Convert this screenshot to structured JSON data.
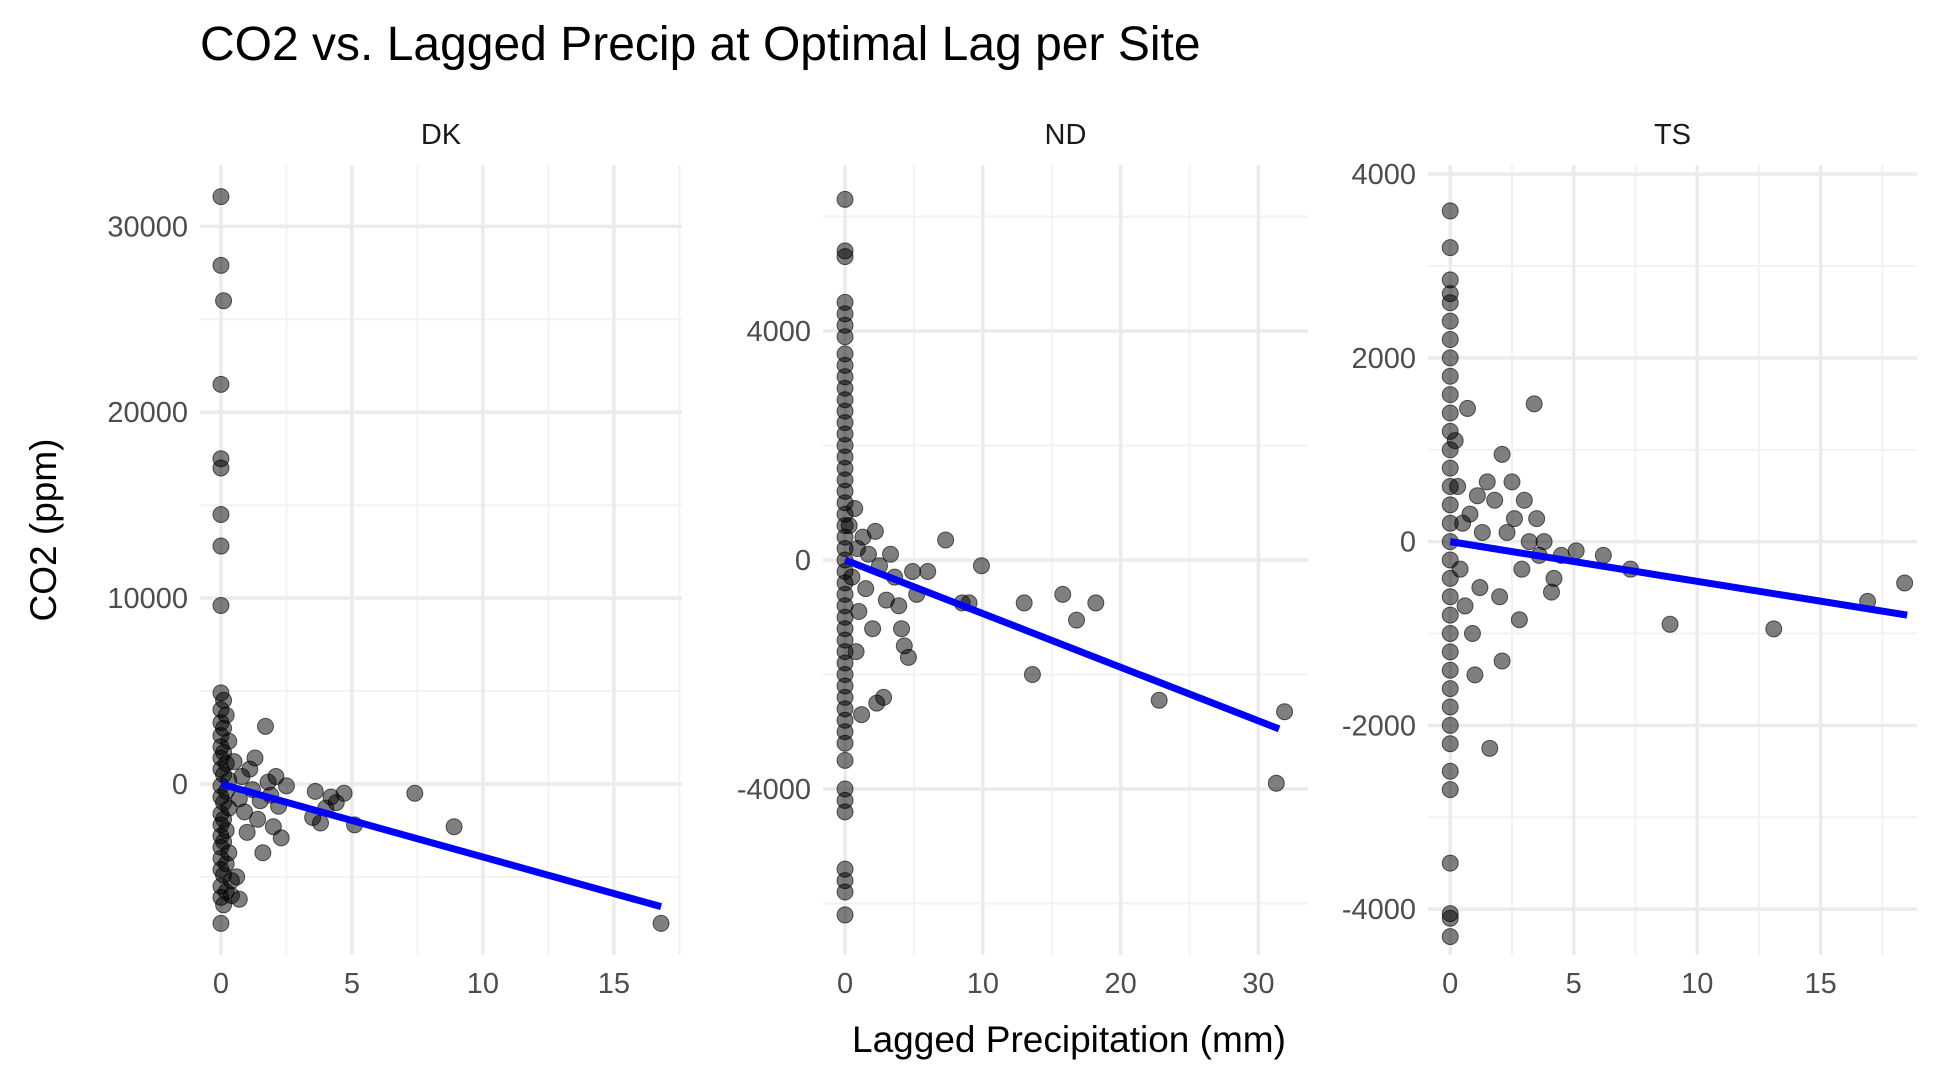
{
  "chart_data": {
    "type": "scatter",
    "title": "CO2 vs. Lagged Precip at Optimal Lag per Site",
    "xlabel": "Lagged Precipitation (mm)",
    "ylabel": "CO2 (ppm)",
    "grid": true,
    "legend": "none",
    "colors": {
      "points": "#000000",
      "fit_line": "#0000ff",
      "grid": "#ebebeb"
    },
    "panels": [
      {
        "name": "DK",
        "xlim": [
          -0.8,
          17.6
        ],
        "ylim": [
          -9200,
          33300
        ],
        "x_major_ticks": [
          0,
          5,
          10,
          15
        ],
        "x_minor_ticks": [
          2.5,
          7.5,
          12.5,
          17.5
        ],
        "y_major_ticks": [
          0,
          10000,
          20000,
          30000
        ],
        "y_minor_ticks": [
          -5000,
          5000,
          15000,
          25000
        ],
        "x_tick_labels": [
          "0",
          "5",
          "10",
          "15"
        ],
        "y_tick_labels": [
          "0",
          "10000",
          "20000",
          "30000"
        ],
        "fit": {
          "x": [
            0,
            16.8
          ],
          "y": [
            0,
            -6600
          ]
        },
        "points": [
          [
            0,
            31600
          ],
          [
            0,
            27900
          ],
          [
            0.1,
            26000
          ],
          [
            0,
            21500
          ],
          [
            0,
            17500
          ],
          [
            0,
            17000
          ],
          [
            0,
            14500
          ],
          [
            0,
            12800
          ],
          [
            0,
            9600
          ],
          [
            0,
            4900
          ],
          [
            0.1,
            4500
          ],
          [
            0,
            4000
          ],
          [
            0.2,
            3700
          ],
          [
            0,
            3300
          ],
          [
            0.1,
            3000
          ],
          [
            0,
            2600
          ],
          [
            0.3,
            2300
          ],
          [
            0,
            2000
          ],
          [
            0.1,
            1700
          ],
          [
            0,
            1400
          ],
          [
            0.2,
            1100
          ],
          [
            0,
            800
          ],
          [
            0.1,
            500
          ],
          [
            0.3,
            200
          ],
          [
            0,
            -100
          ],
          [
            0.2,
            -400
          ],
          [
            0,
            -700
          ],
          [
            0.1,
            -1000
          ],
          [
            0.3,
            -1300
          ],
          [
            0,
            -1600
          ],
          [
            0.1,
            -1900
          ],
          [
            0,
            -2200
          ],
          [
            0.2,
            -2500
          ],
          [
            0,
            -2800
          ],
          [
            0.1,
            -3100
          ],
          [
            0,
            -3400
          ],
          [
            0.3,
            -3700
          ],
          [
            0,
            -4000
          ],
          [
            0.2,
            -4300
          ],
          [
            0,
            -4600
          ],
          [
            0.1,
            -4900
          ],
          [
            0.4,
            -5200
          ],
          [
            0,
            -5500
          ],
          [
            0.2,
            -5800
          ],
          [
            0,
            -6100
          ],
          [
            0.1,
            -6500
          ],
          [
            0.4,
            -6000
          ],
          [
            0.6,
            -5000
          ],
          [
            0.7,
            -6200
          ],
          [
            0,
            -7500
          ],
          [
            0.5,
            1200
          ],
          [
            0.7,
            -800
          ],
          [
            0.8,
            400
          ],
          [
            0.9,
            -1500
          ],
          [
            1.0,
            -2600
          ],
          [
            1.1,
            800
          ],
          [
            1.2,
            -300
          ],
          [
            1.3,
            1400
          ],
          [
            1.4,
            -1900
          ],
          [
            1.5,
            -900
          ],
          [
            1.6,
            -3700
          ],
          [
            1.7,
            3100
          ],
          [
            1.8,
            100
          ],
          [
            1.9,
            -600
          ],
          [
            2.0,
            -2300
          ],
          [
            2.1,
            400
          ],
          [
            2.2,
            -1200
          ],
          [
            2.3,
            -2900
          ],
          [
            2.5,
            -100
          ],
          [
            3.5,
            -1800
          ],
          [
            3.6,
            -400
          ],
          [
            3.8,
            -2100
          ],
          [
            4.0,
            -1300
          ],
          [
            4.2,
            -700
          ],
          [
            4.4,
            -1000
          ],
          [
            4.7,
            -500
          ],
          [
            5.1,
            -2200
          ],
          [
            7.4,
            -500
          ],
          [
            8.9,
            -2300
          ],
          [
            16.8,
            -7500
          ]
        ]
      },
      {
        "name": "ND",
        "xlim": [
          -1.6,
          33.6
        ],
        "ylim": [
          -6900,
          6900
        ],
        "x_major_ticks": [
          0,
          10,
          20,
          30
        ],
        "x_minor_ticks": [
          5,
          15,
          25
        ],
        "y_major_ticks": [
          -4000,
          0,
          4000
        ],
        "y_minor_ticks": [
          -6000,
          -2000,
          2000,
          6000
        ],
        "x_tick_labels": [
          "0",
          "10",
          "20",
          "30"
        ],
        "y_tick_labels": [
          "-4000",
          "0",
          "4000"
        ],
        "fit": {
          "x": [
            0,
            31.5
          ],
          "y": [
            0,
            -2950
          ]
        },
        "points": [
          [
            0,
            6300
          ],
          [
            0,
            5400
          ],
          [
            0,
            5300
          ],
          [
            0,
            4500
          ],
          [
            0,
            4300
          ],
          [
            0,
            4100
          ],
          [
            0,
            3900
          ],
          [
            0,
            3600
          ],
          [
            0,
            3400
          ],
          [
            0,
            3200
          ],
          [
            0,
            3000
          ],
          [
            0,
            2800
          ],
          [
            0,
            2600
          ],
          [
            0,
            2400
          ],
          [
            0,
            2200
          ],
          [
            0,
            2000
          ],
          [
            0,
            1800
          ],
          [
            0,
            1600
          ],
          [
            0,
            1400
          ],
          [
            0,
            1200
          ],
          [
            0,
            1000
          ],
          [
            0,
            800
          ],
          [
            0,
            600
          ],
          [
            0,
            400
          ],
          [
            0,
            200
          ],
          [
            0,
            0
          ],
          [
            0,
            -200
          ],
          [
            0,
            -400
          ],
          [
            0,
            -600
          ],
          [
            0,
            -800
          ],
          [
            0,
            -1000
          ],
          [
            0,
            -1200
          ],
          [
            0,
            -1400
          ],
          [
            0,
            -1600
          ],
          [
            0,
            -1800
          ],
          [
            0,
            -2000
          ],
          [
            0,
            -2200
          ],
          [
            0,
            -2400
          ],
          [
            0,
            -2600
          ],
          [
            0,
            -2800
          ],
          [
            0,
            -3000
          ],
          [
            0,
            -3200
          ],
          [
            0,
            -3500
          ],
          [
            0,
            -4000
          ],
          [
            0,
            -4200
          ],
          [
            0,
            -4400
          ],
          [
            0,
            -5400
          ],
          [
            0,
            -5600
          ],
          [
            0,
            -5800
          ],
          [
            0,
            -6200
          ],
          [
            0.3,
            600
          ],
          [
            0.5,
            -300
          ],
          [
            0.7,
            900
          ],
          [
            0.8,
            -1600
          ],
          [
            0.9,
            200
          ],
          [
            1.0,
            -900
          ],
          [
            1.2,
            -2700
          ],
          [
            1.3,
            400
          ],
          [
            1.5,
            -500
          ],
          [
            1.7,
            100
          ],
          [
            2.0,
            -1200
          ],
          [
            2.2,
            500
          ],
          [
            2.3,
            -2500
          ],
          [
            2.5,
            -100
          ],
          [
            2.8,
            -2400
          ],
          [
            3.0,
            -700
          ],
          [
            3.3,
            100
          ],
          [
            3.6,
            -300
          ],
          [
            3.9,
            -800
          ],
          [
            4.1,
            -1200
          ],
          [
            4.3,
            -1500
          ],
          [
            4.6,
            -1700
          ],
          [
            4.9,
            -200
          ],
          [
            5.2,
            -600
          ],
          [
            6.0,
            -200
          ],
          [
            7.3,
            350
          ],
          [
            8.5,
            -750
          ],
          [
            9.0,
            -750
          ],
          [
            9.9,
            -100
          ],
          [
            13.0,
            -750
          ],
          [
            13.6,
            -2000
          ],
          [
            15.8,
            -600
          ],
          [
            16.8,
            -1050
          ],
          [
            18.2,
            -750
          ],
          [
            22.8,
            -2450
          ],
          [
            31.3,
            -3900
          ],
          [
            31.9,
            -2650
          ]
        ]
      },
      {
        "name": "TS",
        "xlim": [
          -0.9,
          18.9
        ],
        "ylim": [
          -4500,
          4100
        ],
        "x_major_ticks": [
          0,
          5,
          10,
          15
        ],
        "x_minor_ticks": [
          2.5,
          7.5,
          12.5,
          17.5
        ],
        "y_major_ticks": [
          -4000,
          -2000,
          0,
          2000,
          4000
        ],
        "y_minor_ticks": [
          -3000,
          -1000,
          1000,
          3000
        ],
        "x_tick_labels": [
          "0",
          "5",
          "10",
          "15"
        ],
        "y_tick_labels": [
          "-4000",
          "-2000",
          "0",
          "2000",
          "4000"
        ],
        "fit": {
          "x": [
            0,
            18.5
          ],
          "y": [
            0,
            -800
          ]
        },
        "points": [
          [
            0,
            3600
          ],
          [
            0,
            3200
          ],
          [
            0,
            2850
          ],
          [
            0,
            2700
          ],
          [
            0,
            2600
          ],
          [
            0,
            2400
          ],
          [
            0,
            2200
          ],
          [
            0,
            2000
          ],
          [
            0,
            1800
          ],
          [
            0,
            1600
          ],
          [
            0,
            1400
          ],
          [
            0,
            1200
          ],
          [
            0,
            1000
          ],
          [
            0,
            800
          ],
          [
            0,
            600
          ],
          [
            0,
            400
          ],
          [
            0,
            200
          ],
          [
            0,
            0
          ],
          [
            0,
            -200
          ],
          [
            0,
            -400
          ],
          [
            0,
            -600
          ],
          [
            0,
            -800
          ],
          [
            0,
            -1000
          ],
          [
            0,
            -1200
          ],
          [
            0,
            -1400
          ],
          [
            0,
            -1600
          ],
          [
            0,
            -1800
          ],
          [
            0,
            -2000
          ],
          [
            0,
            -2200
          ],
          [
            0,
            -2500
          ],
          [
            0,
            -2700
          ],
          [
            0,
            -3500
          ],
          [
            0,
            -4050
          ],
          [
            0,
            -4100
          ],
          [
            0,
            -4300
          ],
          [
            0.2,
            1100
          ],
          [
            0.3,
            600
          ],
          [
            0.4,
            -300
          ],
          [
            0.5,
            200
          ],
          [
            0.6,
            -700
          ],
          [
            0.7,
            1450
          ],
          [
            0.8,
            300
          ],
          [
            0.9,
            -1000
          ],
          [
            1.0,
            -1450
          ],
          [
            1.1,
            500
          ],
          [
            1.2,
            -500
          ],
          [
            1.3,
            100
          ],
          [
            1.5,
            650
          ],
          [
            1.6,
            -2250
          ],
          [
            1.8,
            450
          ],
          [
            2.0,
            -600
          ],
          [
            2.1,
            -1300
          ],
          [
            2.1,
            950
          ],
          [
            2.3,
            100
          ],
          [
            2.5,
            650
          ],
          [
            2.6,
            250
          ],
          [
            2.8,
            -850
          ],
          [
            2.9,
            -300
          ],
          [
            3.0,
            450
          ],
          [
            3.2,
            0
          ],
          [
            3.4,
            1500
          ],
          [
            3.5,
            250
          ],
          [
            3.6,
            -150
          ],
          [
            3.8,
            0
          ],
          [
            4.1,
            -550
          ],
          [
            4.2,
            -400
          ],
          [
            4.5,
            -150
          ],
          [
            5.1,
            -100
          ],
          [
            6.2,
            -150
          ],
          [
            7.3,
            -300
          ],
          [
            8.9,
            -900
          ],
          [
            13.1,
            -950
          ],
          [
            16.9,
            -650
          ],
          [
            18.4,
            -450
          ]
        ]
      }
    ]
  }
}
